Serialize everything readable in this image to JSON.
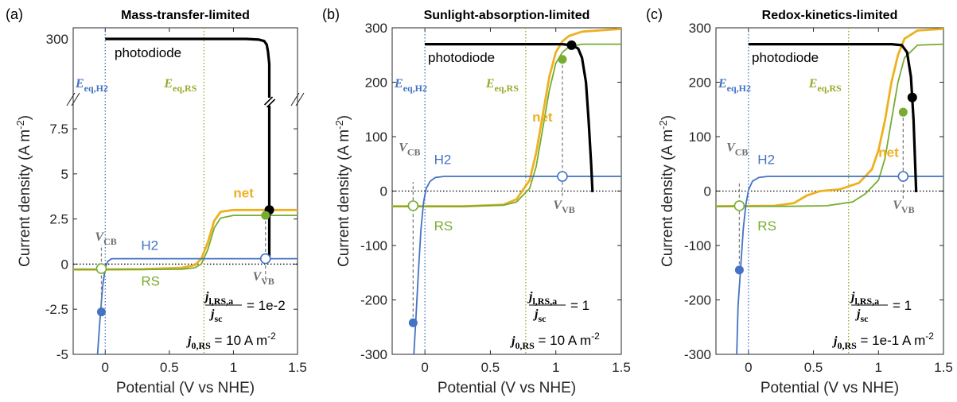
{
  "colors": {
    "photodiode": "#000000",
    "net": "#EDB120",
    "H2": "#4472C4",
    "RS": "#77AC30",
    "eq_h2": "#4472C4",
    "eq_rs": "#9BA82A"
  },
  "chart_data": [
    {
      "panel_label": "(a)",
      "title": "Mass-transfer-limited",
      "type": "line",
      "xlabel": "Potential (V vs NHE)",
      "ylabel": "Current density (A m",
      "ylabel_sup": "-2",
      "xlim": [
        -0.25,
        1.5
      ],
      "ylim": [
        -5,
        9.0
      ],
      "y_break": {
        "lower_top": 9.0,
        "upper_value": 300
      },
      "xticks": [
        0,
        0.5,
        1,
        1.5
      ],
      "xtick_labels": [
        "0",
        "0.5",
        "1",
        "1.5"
      ],
      "yticks": [
        -5,
        -2.5,
        0,
        2.5,
        5,
        7.5
      ],
      "ytick_labels": [
        "-5",
        "-2.5",
        "0",
        "2.5",
        "5",
        "7.5"
      ],
      "upper_tick_label": "300",
      "eq": {
        "H2": 0.0,
        "RS": 0.77
      },
      "series": [
        {
          "name": "photodiode",
          "x": [
            0.0,
            0.3,
            0.6,
            0.9,
            1.1,
            1.2,
            1.24,
            1.26,
            1.27,
            1.28,
            1.28,
            1.28,
            1.28
          ],
          "y": [
            300,
            300,
            300,
            300,
            300,
            299,
            297,
            292,
            282,
            265,
            9.0,
            3.0,
            0.3
          ]
        },
        {
          "name": "net",
          "x": [
            -0.25,
            0.0,
            0.3,
            0.6,
            0.7,
            0.75,
            0.8,
            0.85,
            0.9,
            1.0,
            1.2,
            1.5
          ],
          "y": [
            -0.3,
            -0.3,
            -0.28,
            -0.2,
            -0.05,
            0.3,
            1.2,
            2.4,
            2.9,
            3.0,
            3.0,
            3.0
          ]
        },
        {
          "name": "H2",
          "x": [
            -0.06,
            -0.04,
            -0.02,
            0.0,
            0.02,
            0.05,
            0.1,
            0.3,
            0.6,
            1.0,
            1.5
          ],
          "y": [
            -5,
            -3.0,
            -1.2,
            -0.2,
            0.15,
            0.3,
            0.3,
            0.3,
            0.3,
            0.3,
            0.3
          ]
        },
        {
          "name": "RS",
          "x": [
            -0.25,
            0.3,
            0.6,
            0.7,
            0.75,
            0.8,
            0.85,
            0.9,
            1.0,
            1.2,
            1.5
          ],
          "y": [
            -0.3,
            -0.3,
            -0.28,
            -0.2,
            0.0,
            0.8,
            2.0,
            2.55,
            2.7,
            2.7,
            2.7
          ]
        }
      ],
      "labels": {
        "photodiode": "photodiode",
        "net": "net",
        "H2": "H2",
        "RS": "RS",
        "eq_h2": "E",
        "eq_h2_sub": "eq,H2",
        "eq_rs": "E",
        "eq_rs_sub": "eq,RS",
        "vcb": "V",
        "vcb_sub": "CB",
        "vvb": "V",
        "vvb_sub": "VB"
      },
      "points": {
        "photodiode": [
          1.28,
          3.0
        ],
        "net_rs": [
          1.25,
          2.7
        ],
        "vvb": [
          1.25,
          0.3
        ],
        "vcb_open": [
          -0.03,
          -0.25
        ],
        "vcb_filled": [
          -0.03,
          -2.65
        ]
      },
      "annotation": {
        "frac_num": "j",
        "frac_num_sub": "l,RS,a",
        "frac_den": "j",
        "frac_den_sub": "sc",
        "frac_value": "= 1e-2",
        "j0": "j",
        "j0_sub": "0,RS",
        "j0_value": "= 10 A m",
        "j0_sup": "-2"
      }
    },
    {
      "panel_label": "(b)",
      "title": "Sunlight-absorption-limited",
      "type": "line",
      "xlabel": "Potential (V vs NHE)",
      "ylabel": "Current density (A m",
      "ylabel_sup": "-2",
      "xlim": [
        -0.25,
        1.5
      ],
      "ylim": [
        -300,
        300
      ],
      "xticks": [
        0,
        0.5,
        1,
        1.5
      ],
      "xtick_labels": [
        "0",
        "0.5",
        "1",
        "1.5"
      ],
      "yticks": [
        -300,
        -200,
        -100,
        0,
        100,
        200,
        300
      ],
      "ytick_labels": [
        "-300",
        "-200",
        "-100",
        "0",
        "100",
        "200",
        "300"
      ],
      "eq": {
        "H2": 0.0,
        "RS": 0.77
      },
      "series": [
        {
          "name": "photodiode",
          "x": [
            0.0,
            0.5,
            0.9,
            1.05,
            1.12,
            1.17,
            1.2,
            1.23,
            1.25,
            1.27,
            1.28
          ],
          "y": [
            270,
            270,
            270,
            270,
            268,
            262,
            245,
            200,
            130,
            50,
            -2
          ]
        },
        {
          "name": "net",
          "x": [
            -0.25,
            0.3,
            0.6,
            0.7,
            0.8,
            0.85,
            0.9,
            0.95,
            1.0,
            1.05,
            1.1,
            1.2,
            1.5
          ],
          "y": [
            -28,
            -28,
            -25,
            -15,
            20,
            70,
            140,
            210,
            255,
            275,
            285,
            293,
            298
          ]
        },
        {
          "name": "H2",
          "x": [
            -0.085,
            -0.07,
            -0.05,
            -0.03,
            -0.01,
            0.01,
            0.04,
            0.08,
            0.15,
            0.4,
            1.5
          ],
          "y": [
            -300,
            -240,
            -150,
            -70,
            -20,
            5,
            18,
            25,
            27,
            27,
            27
          ]
        },
        {
          "name": "RS",
          "x": [
            -0.25,
            0.3,
            0.6,
            0.7,
            0.8,
            0.85,
            0.9,
            0.95,
            1.0,
            1.05,
            1.1,
            1.2,
            1.5
          ],
          "y": [
            -28,
            -28,
            -26,
            -20,
            5,
            45,
            115,
            185,
            235,
            255,
            265,
            270,
            270
          ]
        }
      ],
      "labels": {
        "photodiode": "photodiode",
        "net": "net",
        "H2": "H2",
        "RS": "RS",
        "eq_h2": "E",
        "eq_h2_sub": "eq,H2",
        "eq_rs": "E",
        "eq_rs_sub": "eq,RS",
        "vcb": "V",
        "vcb_sub": "CB",
        "vvb": "V",
        "vvb_sub": "VB"
      },
      "points": {
        "photodiode": [
          1.12,
          268
        ],
        "net_rs": [
          1.05,
          242
        ],
        "vvb": [
          1.05,
          27
        ],
        "vcb_open": [
          -0.09,
          -27
        ],
        "vcb_filled": [
          -0.09,
          -242
        ]
      },
      "annotation": {
        "frac_num": "j",
        "frac_num_sub": "l,RS,a",
        "frac_den": "j",
        "frac_den_sub": "sc",
        "frac_value": "= 1",
        "j0": "j",
        "j0_sub": "0,RS",
        "j0_value": "= 10 A m",
        "j0_sup": "-2"
      }
    },
    {
      "panel_label": "(c)",
      "title": "Redox-kinetics-limited",
      "type": "line",
      "xlabel": "Potential (V vs NHE)",
      "ylabel": "Current density (A m",
      "ylabel_sup": "-2",
      "xlim": [
        -0.25,
        1.5
      ],
      "ylim": [
        -300,
        300
      ],
      "xticks": [
        0,
        0.5,
        1,
        1.5
      ],
      "xtick_labels": [
        "0",
        "0.5",
        "1",
        "1.5"
      ],
      "yticks": [
        -300,
        -200,
        -100,
        0,
        100,
        200,
        300
      ],
      "ytick_labels": [
        "-300",
        "-200",
        "-100",
        "0",
        "100",
        "200",
        "300"
      ],
      "eq": {
        "H2": 0.0,
        "RS": 0.77
      },
      "series": [
        {
          "name": "photodiode",
          "x": [
            0.0,
            0.5,
            0.9,
            1.1,
            1.18,
            1.22,
            1.25,
            1.27,
            1.29
          ],
          "y": [
            270,
            270,
            270,
            270,
            268,
            255,
            210,
            130,
            -2
          ]
        },
        {
          "name": "net",
          "x": [
            -0.25,
            0.2,
            0.35,
            0.45,
            0.55,
            0.7,
            0.85,
            0.95,
            1.0,
            1.05,
            1.1,
            1.15,
            1.2,
            1.3,
            1.5
          ],
          "y": [
            -28,
            -27,
            -22,
            -8,
            0,
            3,
            15,
            40,
            75,
            130,
            200,
            250,
            280,
            295,
            298
          ]
        },
        {
          "name": "H2",
          "x": [
            -0.09,
            -0.08,
            -0.06,
            -0.04,
            -0.02,
            0.0,
            0.03,
            0.08,
            0.15,
            0.4,
            1.5
          ],
          "y": [
            -300,
            -210,
            -140,
            -70,
            -25,
            2,
            18,
            25,
            27,
            27,
            27
          ]
        },
        {
          "name": "RS",
          "x": [
            -0.25,
            0.3,
            0.6,
            0.8,
            0.9,
            1.0,
            1.05,
            1.1,
            1.15,
            1.2,
            1.3,
            1.5
          ],
          "y": [
            -28,
            -28,
            -27,
            -20,
            -5,
            20,
            60,
            130,
            200,
            245,
            268,
            270
          ]
        }
      ],
      "labels": {
        "photodiode": "photodiode",
        "net": "net",
        "H2": "H2",
        "RS": "RS",
        "eq_h2": "E",
        "eq_h2_sub": "eq,H2",
        "eq_rs": "E",
        "eq_rs_sub": "eq,RS",
        "vcb": "V",
        "vcb_sub": "CB",
        "vvb": "V",
        "vvb_sub": "VB"
      },
      "points": {
        "photodiode": [
          1.26,
          172
        ],
        "net_rs": [
          1.19,
          145
        ],
        "vvb": [
          1.19,
          27
        ],
        "vcb_open": [
          -0.07,
          -27
        ],
        "vcb_filled": [
          -0.07,
          -145
        ]
      },
      "annotation": {
        "frac_num": "j",
        "frac_num_sub": "l,RS,a",
        "frac_den": "j",
        "frac_den_sub": "sc",
        "frac_value": "= 1",
        "j0": "j",
        "j0_sub": "0,RS",
        "j0_value": "= 1e-1 A m",
        "j0_sup": "-2"
      }
    }
  ]
}
